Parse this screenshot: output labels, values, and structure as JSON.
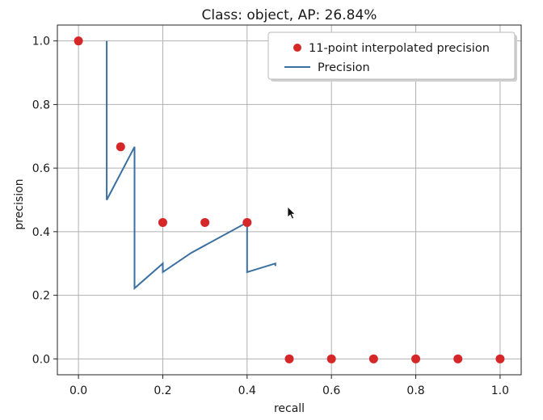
{
  "chart_data": {
    "type": "line",
    "title": "Class: object, AP: 26.84%",
    "xlabel": "recall",
    "ylabel": "precision",
    "xlim": [
      -0.05,
      1.05
    ],
    "ylim": [
      -0.05,
      1.05
    ],
    "xticks": [
      "0.0",
      "0.2",
      "0.4",
      "0.6",
      "0.8",
      "1.0"
    ],
    "yticks": [
      "0.0",
      "0.2",
      "0.4",
      "0.6",
      "0.8",
      "1.0"
    ],
    "grid": true,
    "legend_position": "top-right",
    "series": [
      {
        "name": "11-point interpolated precision",
        "type": "scatter",
        "color": "#d62728",
        "x": [
          0.0,
          0.1,
          0.2,
          0.3,
          0.4,
          0.5,
          0.6,
          0.7,
          0.8,
          0.9,
          1.0
        ],
        "y": [
          1.0,
          0.667,
          0.429,
          0.429,
          0.429,
          0.0,
          0.0,
          0.0,
          0.0,
          0.0,
          0.0
        ]
      },
      {
        "name": "Precision",
        "type": "line",
        "color": "#3a6fa0",
        "x": [
          0.067,
          0.067,
          0.133,
          0.133,
          0.2,
          0.2,
          0.267,
          0.4,
          0.4,
          0.467,
          0.467
        ],
        "y": [
          1.0,
          0.5,
          0.667,
          0.222,
          0.3,
          0.273,
          0.333,
          0.429,
          0.273,
          0.3,
          0.292
        ]
      }
    ]
  }
}
